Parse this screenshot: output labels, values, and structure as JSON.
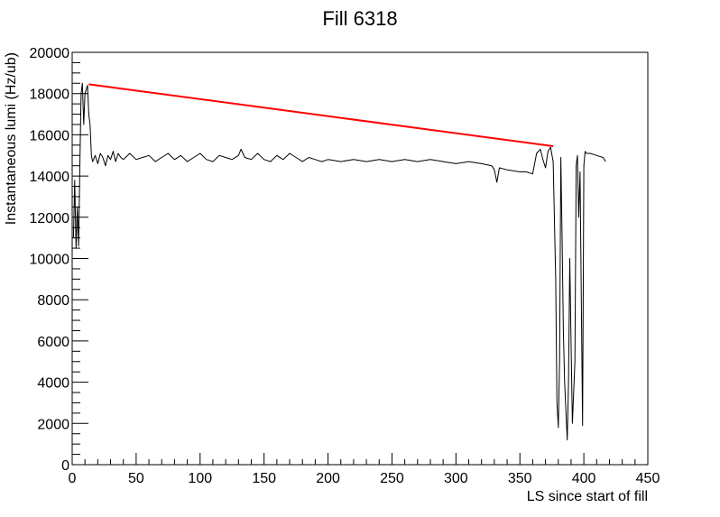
{
  "chart_data": {
    "type": "line",
    "title": "Fill 6318",
    "xlabel": "LS since start of fill",
    "ylabel": "Instantaneous lumi (Hz/ub)",
    "xlim": [
      0,
      450
    ],
    "ylim": [
      0,
      20000
    ],
    "x_major_ticks": [
      0,
      50,
      100,
      150,
      200,
      250,
      300,
      350,
      400,
      450
    ],
    "y_major_ticks": [
      0,
      2000,
      4000,
      6000,
      8000,
      10000,
      12000,
      14000,
      16000,
      18000,
      20000
    ],
    "x_minor_step": 10,
    "y_minor_step": 500,
    "grid": false,
    "legend": "none",
    "series": [
      {
        "color": "#000000",
        "x": [
          1,
          2,
          3,
          4,
          5,
          6,
          7,
          8,
          9,
          10,
          11,
          12,
          13,
          14,
          15,
          16,
          18,
          20,
          22,
          24,
          26,
          28,
          30,
          32,
          34,
          36,
          38,
          40,
          45,
          50,
          55,
          60,
          65,
          70,
          75,
          80,
          85,
          90,
          95,
          100,
          105,
          110,
          115,
          120,
          125,
          130,
          132,
          135,
          140,
          145,
          150,
          155,
          160,
          165,
          170,
          175,
          180,
          185,
          190,
          195,
          200,
          210,
          220,
          230,
          240,
          250,
          260,
          270,
          280,
          290,
          300,
          310,
          320,
          328,
          330,
          332,
          334,
          340,
          350,
          355,
          360,
          363,
          366,
          368,
          370,
          372,
          374,
          376,
          378,
          379,
          380,
          381,
          382,
          383,
          384,
          385,
          386,
          387,
          388,
          389,
          390,
          391,
          392,
          393,
          394,
          395,
          396,
          397,
          398,
          399,
          400,
          401,
          402,
          405,
          410,
          415,
          417
        ],
        "y": [
          11000,
          13800,
          10500,
          12500,
          10600,
          14500,
          18000,
          18500,
          16500,
          18000,
          18200,
          18400,
          17000,
          16500,
          15000,
          14700,
          15000,
          14600,
          15100,
          14900,
          14500,
          15000,
          14800,
          15200,
          14700,
          15100,
          14900,
          14800,
          15100,
          14800,
          14900,
          15000,
          14700,
          14900,
          15100,
          14800,
          15000,
          14700,
          14900,
          15100,
          14800,
          14700,
          15000,
          14900,
          14800,
          15000,
          15300,
          14900,
          14800,
          15100,
          14800,
          14700,
          15000,
          14800,
          15100,
          14900,
          14700,
          14900,
          14800,
          14700,
          14800,
          14700,
          14800,
          14700,
          14800,
          14700,
          14800,
          14700,
          14800,
          14700,
          14600,
          14700,
          14600,
          14500,
          14300,
          13700,
          14400,
          14300,
          14200,
          14200,
          14100,
          15100,
          15300,
          14800,
          14400,
          15200,
          15400,
          14700,
          9000,
          3000,
          1800,
          5000,
          14900,
          11000,
          6500,
          4000,
          2500,
          1200,
          4000,
          10000,
          6000,
          2000,
          3500,
          5000,
          14500,
          15000,
          12000,
          14200,
          8000,
          1900,
          14500,
          15200,
          15100,
          15100,
          15000,
          14900,
          14700
        ]
      },
      {
        "color": "#ff0000",
        "x": [
          13,
          376
        ],
        "y": [
          18450,
          15450
        ]
      }
    ]
  }
}
